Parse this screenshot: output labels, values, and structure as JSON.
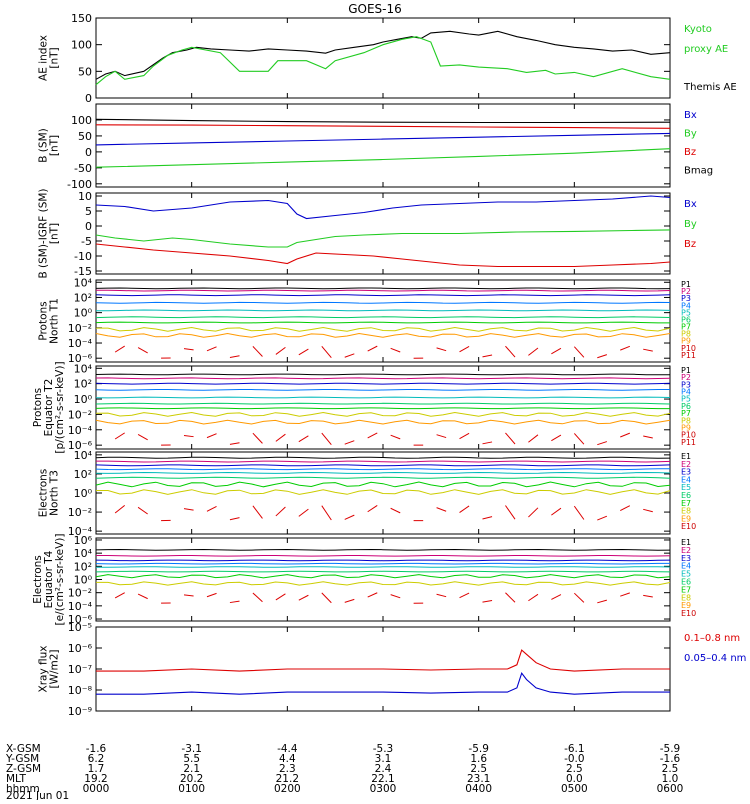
{
  "title": "GOES-16",
  "colors": {
    "black": "#000000",
    "red": "#dd0000",
    "green": "#22cc22",
    "blue": "#0000cc",
    "proton_labels": [
      "#000000",
      "#cc0077",
      "#0000cc",
      "#0077ff",
      "#00bbbb",
      "#00cc66",
      "#00cc00",
      "#cccc00",
      "#ff9900",
      "#cc0000",
      "#cc0000"
    ],
    "electron_labels": [
      "#000000",
      "#cc0077",
      "#0000cc",
      "#0077ff",
      "#00bbbb",
      "#00cc66",
      "#00cc00",
      "#cccc00",
      "#ff9900",
      "#cc0000"
    ]
  },
  "chart_data": [
    {
      "type": "line",
      "ylabel": [
        "AE index",
        "[nT]"
      ],
      "ylim": [
        0,
        150
      ],
      "yticks": [
        "0",
        "50",
        "100",
        "150"
      ],
      "legend": [
        {
          "text": "Kyoto",
          "color": "#22cc22"
        },
        {
          "text": "proxy AE",
          "color": "#22cc22"
        },
        {
          "text": "Themis AE",
          "color": "#000000"
        }
      ],
      "series": [
        {
          "name": "Themis AE",
          "color": "#000000",
          "x": [
            0,
            0.1,
            0.2,
            0.3,
            0.5,
            0.7,
            0.8,
            0.95,
            1.05,
            1.2,
            1.4,
            1.6,
            1.8,
            2.0,
            2.2,
            2.4,
            2.5,
            2.7,
            2.9,
            3.0,
            3.15,
            3.3,
            3.4,
            3.5,
            3.7,
            3.9,
            4.0,
            4.2,
            4.4,
            4.6,
            4.8,
            5.0,
            5.2,
            5.4,
            5.6,
            5.8,
            6.0
          ],
          "y": [
            35,
            45,
            50,
            42,
            50,
            75,
            85,
            90,
            95,
            92,
            90,
            88,
            92,
            90,
            88,
            84,
            90,
            95,
            100,
            105,
            110,
            115,
            112,
            122,
            125,
            120,
            118,
            125,
            115,
            108,
            100,
            95,
            92,
            88,
            90,
            82,
            85
          ]
        },
        {
          "name": "Kyoto proxy AE",
          "color": "#22cc22",
          "x": [
            0,
            0.1,
            0.2,
            0.3,
            0.5,
            0.6,
            0.75,
            0.9,
            1.0,
            1.3,
            1.5,
            1.8,
            1.9,
            2.2,
            2.4,
            2.5,
            2.8,
            3.0,
            3.2,
            3.35,
            3.5,
            3.6,
            3.8,
            4.0,
            4.3,
            4.5,
            4.7,
            4.8,
            5.0,
            5.2,
            5.5,
            5.8,
            6.0
          ],
          "y": [
            25,
            40,
            50,
            35,
            42,
            60,
            80,
            90,
            95,
            85,
            50,
            50,
            70,
            70,
            55,
            70,
            85,
            100,
            110,
            115,
            105,
            60,
            62,
            58,
            55,
            48,
            52,
            45,
            48,
            40,
            55,
            40,
            35
          ]
        }
      ]
    },
    {
      "type": "line",
      "ylabel": [
        "B (SM)",
        "[nT]"
      ],
      "ylim": [
        -110,
        150
      ],
      "yticks": [
        "-100",
        "-50",
        "0",
        "50",
        "100"
      ],
      "legend": [
        {
          "text": "Bx",
          "color": "#0000cc"
        },
        {
          "text": "By",
          "color": "#22cc22"
        },
        {
          "text": "Bz",
          "color": "#dd0000"
        },
        {
          "text": "Bmag",
          "color": "#000000"
        }
      ],
      "series": [
        {
          "name": "Bx",
          "color": "#0000cc",
          "x": [
            0,
            1,
            2,
            3,
            4,
            5,
            6
          ],
          "y": [
            22,
            28,
            34,
            40,
            46,
            52,
            58
          ]
        },
        {
          "name": "By",
          "color": "#22cc22",
          "x": [
            0,
            1,
            2,
            3,
            4,
            5,
            6
          ],
          "y": [
            -48,
            -40,
            -32,
            -24,
            -14,
            -4,
            10
          ]
        },
        {
          "name": "Bz",
          "color": "#dd0000",
          "x": [
            0,
            1,
            2,
            3,
            4,
            5,
            6
          ],
          "y": [
            85,
            84,
            82,
            80,
            78,
            76,
            74
          ]
        },
        {
          "name": "Bmag",
          "color": "#000000",
          "x": [
            0,
            1,
            2,
            3,
            4,
            5,
            6
          ],
          "y": [
            102,
            98,
            95,
            93,
            92,
            92,
            93
          ]
        }
      ]
    },
    {
      "type": "line",
      "ylabel": [
        "B (SM)-IGRF (SM)",
        "[nT]"
      ],
      "ylim": [
        -16,
        11
      ],
      "yticks": [
        "-15",
        "-10",
        "-5",
        "0",
        "5",
        "10"
      ],
      "legend": [
        {
          "text": "Bx",
          "color": "#0000cc"
        },
        {
          "text": "By",
          "color": "#22cc22"
        },
        {
          "text": "Bz",
          "color": "#dd0000"
        }
      ],
      "series": [
        {
          "name": "Bx",
          "color": "#0000cc",
          "x": [
            0,
            0.3,
            0.6,
            1.0,
            1.4,
            1.8,
            2.0,
            2.1,
            2.2,
            2.5,
            2.8,
            3.1,
            3.4,
            3.8,
            4.2,
            4.6,
            5.0,
            5.4,
            5.8,
            6.0
          ],
          "y": [
            7,
            6.5,
            5,
            6,
            8,
            8.5,
            7.5,
            4,
            2.5,
            3.5,
            4.5,
            6,
            7,
            7.5,
            8,
            8,
            8.5,
            9,
            10,
            9.5
          ]
        },
        {
          "name": "By",
          "color": "#22cc22",
          "x": [
            0,
            0.2,
            0.5,
            0.8,
            1.0,
            1.4,
            1.8,
            2.0,
            2.1,
            2.3,
            2.5,
            2.8,
            3.2,
            3.8,
            4.4,
            5.0,
            5.6,
            6.0
          ],
          "y": [
            -3,
            -4,
            -5,
            -4,
            -4.5,
            -6,
            -7,
            -7,
            -5.5,
            -4.5,
            -3.5,
            -3,
            -2.5,
            -2.5,
            -2,
            -1.8,
            -1.5,
            -1.3
          ]
        },
        {
          "name": "Bz",
          "color": "#dd0000",
          "x": [
            0,
            0.3,
            0.6,
            1.0,
            1.4,
            1.8,
            2.0,
            2.1,
            2.3,
            2.6,
            2.9,
            3.2,
            3.5,
            3.8,
            4.2,
            4.6,
            5.0,
            5.4,
            5.8,
            6.0
          ],
          "y": [
            -6,
            -7,
            -8,
            -9,
            -10,
            -11.5,
            -12.5,
            -11,
            -9,
            -9.5,
            -10,
            -11,
            -12,
            -13,
            -13.5,
            -13.5,
            -13.5,
            -13,
            -12.5,
            -12
          ]
        }
      ]
    },
    {
      "type": "line",
      "ylabel": [
        "Protons",
        "North T1"
      ],
      "ylog": true,
      "ylim_exp": [
        -6.5,
        4.3
      ],
      "yticks": [
        "10⁴",
        "10²",
        "10⁰",
        "10⁻²",
        "10⁻⁴",
        "10⁻⁶"
      ],
      "channels": [
        "P1",
        "P2",
        "P3",
        "P4",
        "P5",
        "P6",
        "P7",
        "P8",
        "P9",
        "P10",
        "P11"
      ],
      "levels_exp": [
        3.2,
        2.9,
        2.3,
        1.3,
        0.3,
        -0.6,
        -1.3,
        -2.2,
        -3.0
      ]
    },
    {
      "type": "line",
      "ylabel": [
        "Protons",
        "Equator T2",
        "[p/(cm²-s-sr-keV)]"
      ],
      "ylog": true,
      "ylim_exp": [
        -6.5,
        4.3
      ],
      "yticks": [
        "10⁴",
        "10²",
        "10⁰",
        "10⁻²",
        "10⁻⁴",
        "10⁻⁶"
      ],
      "channels": [
        "P1",
        "P2",
        "P3",
        "P4",
        "P5",
        "P6",
        "P7",
        "P8",
        "P9",
        "P10",
        "P11"
      ],
      "levels_exp": [
        3.2,
        2.7,
        2.0,
        1.2,
        0.2,
        -0.6,
        -1.2,
        -2.0,
        -3.0
      ]
    },
    {
      "type": "line",
      "ylabel": [
        "Electrons",
        "North T3"
      ],
      "ylog": true,
      "ylim_exp": [
        -4.3,
        4.3
      ],
      "yticks": [
        "10⁴",
        "10²",
        "10⁰",
        "10⁻²",
        "10⁻⁴"
      ],
      "channels": [
        "E1",
        "E2",
        "E3",
        "E4",
        "E5",
        "E6",
        "E7",
        "E8",
        "E9",
        "E10"
      ],
      "levels_exp": [
        3.7,
        3.3,
        2.9,
        2.5,
        2.1,
        1.6,
        0.9,
        0.1
      ]
    },
    {
      "type": "line",
      "ylabel": [
        "Electrons",
        "Equator T4",
        "[e/(cm²-s-sr-keV)]"
      ],
      "ylog": true,
      "ylim_exp": [
        -6.3,
        6.3
      ],
      "yticks": [
        "10⁶",
        "10⁴",
        "10²",
        "10⁰",
        "10⁻²",
        "10⁻⁴",
        "10⁻⁶"
      ],
      "channels": [
        "E1",
        "E2",
        "E3",
        "E4",
        "E5",
        "E6",
        "E7",
        "E8",
        "E9",
        "E10"
      ],
      "levels_exp": [
        4.5,
        3.6,
        2.9,
        2.4,
        1.9,
        1.2,
        0.5,
        -0.6
      ]
    },
    {
      "type": "line",
      "ylabel": [
        "Xray flux",
        "[W/m2]"
      ],
      "ylog": true,
      "ylim_exp": [
        -9,
        -5
      ],
      "yticks": [
        "10⁻⁵",
        "10⁻⁶",
        "10⁻⁷",
        "10⁻⁸",
        "10⁻⁹"
      ],
      "legend": [
        {
          "text": "0.1–0.8 nm",
          "color": "#dd0000"
        },
        {
          "text": "0.05–0.4 nm",
          "color": "#0000cc"
        }
      ],
      "series": [
        {
          "name": "0.1–0.8 nm",
          "color": "#dd0000",
          "x": [
            0,
            0.5,
            1.0,
            1.5,
            2.0,
            2.5,
            3.0,
            3.5,
            4.0,
            4.3,
            4.4,
            4.45,
            4.5,
            4.6,
            4.75,
            5.0,
            5.5,
            6.0
          ],
          "y": [
            -7.1,
            -7.1,
            -7.0,
            -7.1,
            -7.0,
            -7.0,
            -7.0,
            -7.05,
            -7.0,
            -7.0,
            -6.8,
            -6.1,
            -6.3,
            -6.7,
            -7.0,
            -7.1,
            -7.0,
            -7.0
          ]
        },
        {
          "name": "0.05–0.4 nm",
          "color": "#0000cc",
          "x": [
            0,
            0.5,
            1.0,
            1.5,
            2.0,
            2.5,
            3.0,
            3.5,
            4.0,
            4.3,
            4.4,
            4.45,
            4.5,
            4.6,
            4.75,
            5.0,
            5.5,
            6.0
          ],
          "y": [
            -8.2,
            -8.2,
            -8.1,
            -8.2,
            -8.1,
            -8.1,
            -8.1,
            -8.15,
            -8.1,
            -8.1,
            -7.9,
            -7.2,
            -7.5,
            -7.9,
            -8.1,
            -8.2,
            -8.1,
            -8.1
          ]
        }
      ]
    }
  ],
  "x_axis": {
    "row_labels": [
      "X-GSM",
      "Y-GSM",
      "Z-GSM",
      "MLT",
      "hhmm"
    ],
    "date": "2021 Jun 01",
    "columns": [
      [
        "-1.6",
        "6.2",
        "1.7",
        "19.2",
        "0000"
      ],
      [
        "-3.1",
        "5.5",
        "2.1",
        "20.2",
        "0100"
      ],
      [
        "-4.4",
        "4.4",
        "2.3",
        "21.2",
        "0200"
      ],
      [
        "-5.3",
        "3.1",
        "2.4",
        "22.1",
        "0300"
      ],
      [
        "-5.9",
        "1.6",
        "2.5",
        "23.1",
        "0400"
      ],
      [
        "-6.1",
        "-0.0",
        "2.5",
        "0.0",
        "0500"
      ],
      [
        "-5.9",
        "-1.6",
        "2.5",
        "1.0",
        "0600"
      ]
    ]
  }
}
